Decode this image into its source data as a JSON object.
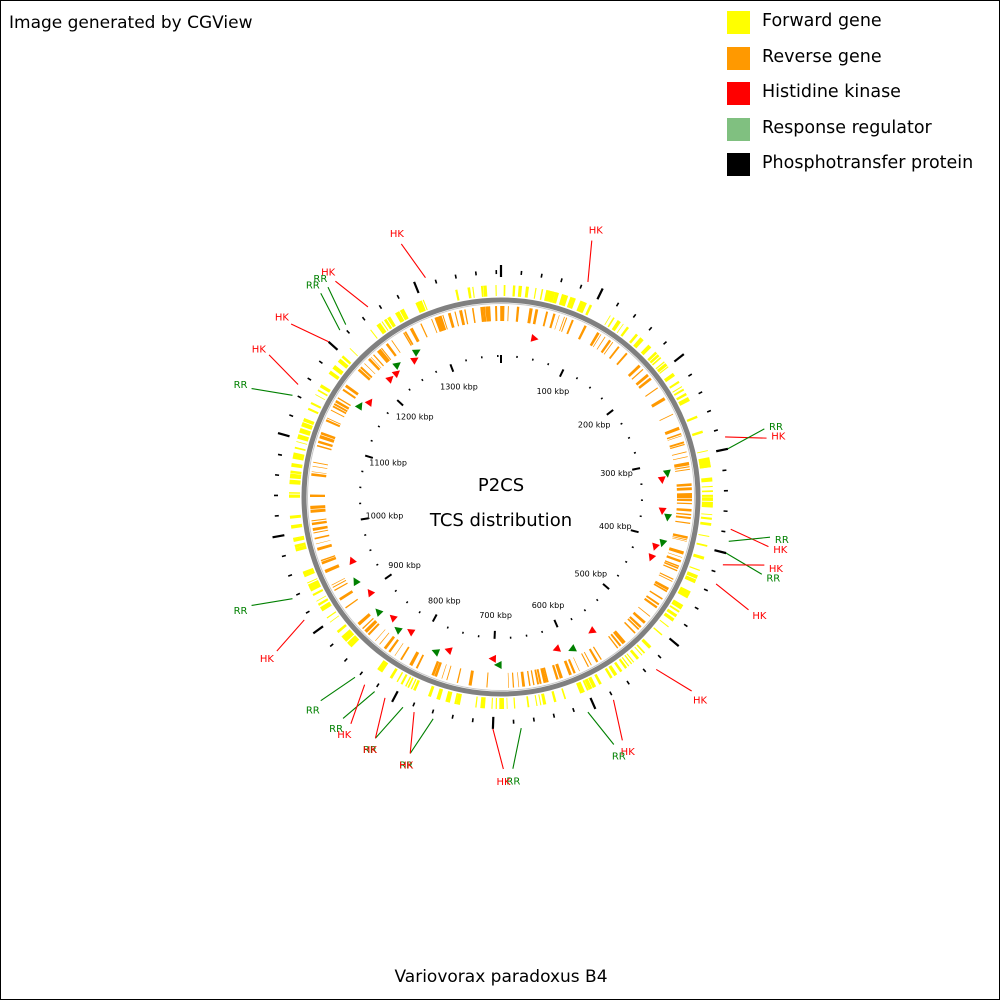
{
  "credit": "Image generated by CGView",
  "legend": [
    {
      "label": "Forward gene",
      "color": "#ffff00"
    },
    {
      "label": "Reverse gene",
      "color": "#ff9900"
    },
    {
      "label": "Histidine kinase",
      "color": "#ff0000"
    },
    {
      "label": "Response regulator",
      "color": "#80c080"
    },
    {
      "label": "Phosphotransfer protein",
      "color": "#000000"
    }
  ],
  "center": {
    "title": "P2CS",
    "subtitle": "TCS distribution"
  },
  "organism": "Variovorax paradoxus B4",
  "genome": {
    "length_kbp": 1380,
    "tick_labels": [
      "100 kbp",
      "200 kbp",
      "300 kbp",
      "400 kbp",
      "500 kbp",
      "600 kbp",
      "700 kbp",
      "800 kbp",
      "900 kbp",
      "1000 kbp",
      "1100 kbp",
      "1200 kbp",
      "1300 kbp"
    ]
  },
  "colors": {
    "forward": "#ffff00",
    "reverse": "#ff9900",
    "hk": "#ff0000",
    "rr": "#008000",
    "backbone": "#808080",
    "tick": "#000000"
  },
  "features": {
    "hk_arrow_angles": [
      12,
      84,
      95,
      108,
      112,
      146,
      160,
      183,
      199,
      214,
      222,
      234,
      247,
      306,
      317,
      320,
      328
    ],
    "rr_arrow_angles": [
      82,
      97,
      106,
      155,
      181,
      203,
      218,
      227,
      240,
      303,
      322,
      330
    ],
    "callouts": [
      {
        "label": "HK",
        "type": "hk",
        "angle": 22
      },
      {
        "label": "HK",
        "type": "hk",
        "angle": 75
      },
      {
        "label": "RR",
        "type": "rr",
        "angle": 78
      },
      {
        "label": "HK",
        "type": "hk",
        "angle": 98
      },
      {
        "label": "RR",
        "type": "rr",
        "angle": 101
      },
      {
        "label": "RR",
        "type": "rr",
        "angle": 104
      },
      {
        "label": "HK",
        "type": "hk",
        "angle": 107
      },
      {
        "label": "HK",
        "type": "hk",
        "angle": 112
      },
      {
        "label": "HK",
        "type": "hk",
        "angle": 138
      },
      {
        "label": "HK",
        "type": "hk",
        "angle": 151
      },
      {
        "label": "RR",
        "type": "rr",
        "angle": 158
      },
      {
        "label": "RR",
        "type": "rr",
        "angle": 175
      },
      {
        "label": "HK",
        "type": "hk",
        "angle": 182
      },
      {
        "label": "RR",
        "type": "rr",
        "angle": 197
      },
      {
        "label": "HK",
        "type": "hk",
        "angle": 202
      },
      {
        "label": "RR",
        "type": "rr",
        "angle": 205
      },
      {
        "label": "HK",
        "type": "hk",
        "angle": 210
      },
      {
        "label": "RR",
        "type": "rr",
        "angle": 213
      },
      {
        "label": "HK",
        "type": "hk",
        "angle": 216
      },
      {
        "label": "RR",
        "type": "rr",
        "angle": 219
      },
      {
        "label": "HK",
        "type": "hk",
        "angle": 238
      },
      {
        "label": "RR",
        "type": "rr",
        "angle": 244
      },
      {
        "label": "RR",
        "type": "rr",
        "angle": 296
      },
      {
        "label": "HK",
        "type": "hk",
        "angle": 299
      },
      {
        "label": "HK",
        "type": "hk",
        "angle": 325
      },
      {
        "label": "RR",
        "type": "rr",
        "angle": 318
      },
      {
        "label": "HK",
        "type": "hk",
        "angle": 312
      },
      {
        "label": "RR",
        "type": "rr",
        "angle": 316
      },
      {
        "label": "HK",
        "type": "hk",
        "angle": 341
      }
    ]
  }
}
